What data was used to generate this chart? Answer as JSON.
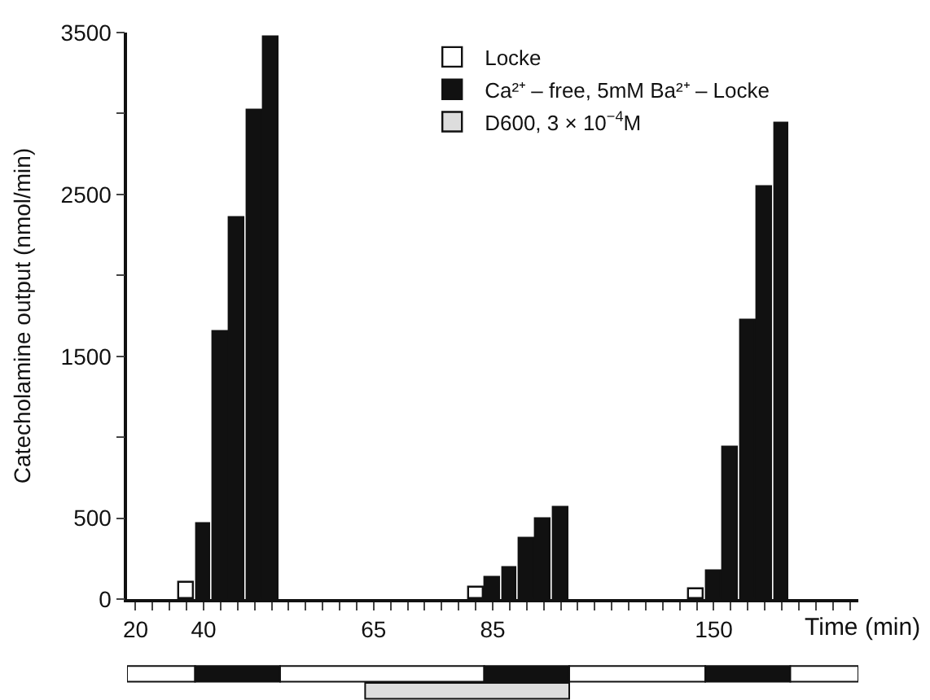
{
  "chart_data": {
    "type": "bar",
    "ylabel": "Catecholamine output (nmol/min)",
    "xlabel": "Time (min)",
    "categories": [
      "20",
      null,
      null,
      null,
      "40",
      null,
      null,
      null,
      null,
      null,
      null,
      null,
      null,
      null,
      "65",
      null,
      null,
      null,
      null,
      null,
      null,
      "85",
      null,
      null,
      null,
      null,
      null,
      null,
      null,
      null,
      null,
      null,
      null,
      null,
      "150",
      null,
      null,
      null,
      null,
      null,
      null,
      null,
      null
    ],
    "series": [
      {
        "name": "Locke",
        "color": "#ffffff",
        "values": [
          null,
          null,
          null,
          100,
          null,
          null,
          null,
          null,
          null,
          null,
          null,
          null,
          null,
          null,
          null,
          null,
          null,
          null,
          null,
          null,
          70,
          null,
          null,
          null,
          null,
          null,
          null,
          null,
          null,
          null,
          null,
          null,
          null,
          60,
          null,
          null,
          null,
          null,
          null,
          null,
          null,
          null,
          null
        ]
      },
      {
        "name": "Ca²⁺ – free, 5mM Ba²⁺ – Locke",
        "color": "#111111",
        "values": [
          null,
          null,
          null,
          null,
          460,
          1650,
          2350,
          3020,
          3470,
          null,
          null,
          null,
          null,
          null,
          null,
          null,
          null,
          null,
          null,
          null,
          null,
          130,
          190,
          370,
          490,
          560,
          null,
          null,
          null,
          null,
          null,
          null,
          null,
          null,
          170,
          940,
          1720,
          2540,
          2940,
          null,
          null,
          null,
          null
        ]
      },
      {
        "name": "D600, 3 × 10$^{−4}$M",
        "color": "#dddddd",
        "values": [
          null,
          null,
          null,
          null,
          null,
          null,
          null,
          null,
          null,
          null,
          null,
          null,
          null,
          null,
          null,
          null,
          null,
          null,
          null,
          null,
          null,
          null,
          null,
          null,
          null,
          null,
          null,
          null,
          null,
          null,
          null,
          null,
          null,
          null,
          null,
          null,
          null,
          null,
          null,
          null,
          null,
          null,
          null
        ]
      }
    ],
    "ylim": [
      0,
      3500
    ],
    "yticks": [
      0,
      {
        "value": 500,
        "label": "500"
      },
      {
        "value": 1000,
        "label": null
      },
      1500,
      {
        "value": 2000,
        "label": null
      },
      2500,
      {
        "value": 3000,
        "label": null
      },
      3500
    ],
    "legend": "top right"
  }
}
